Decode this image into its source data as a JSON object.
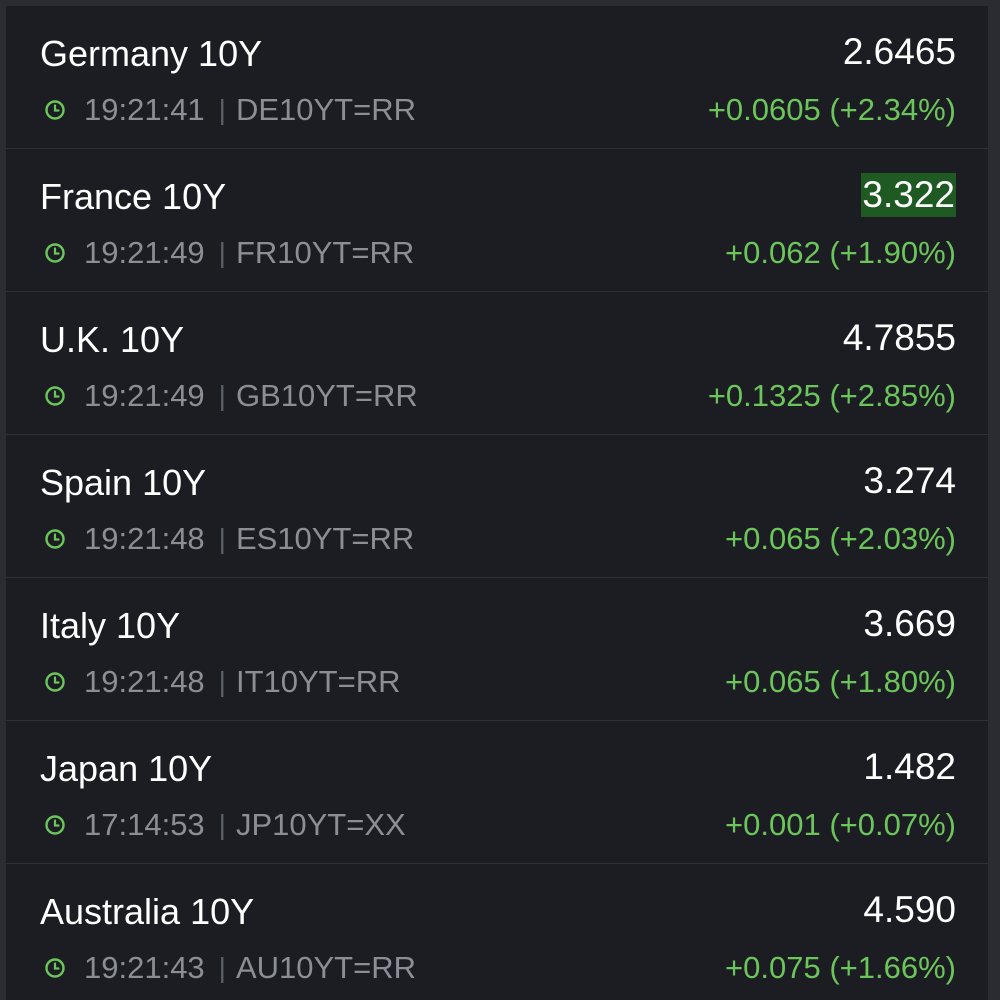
{
  "colors": {
    "background": "#1b1d22",
    "positive": "#6cc55a",
    "flash": "#1f5a22",
    "muted_text": "#8b8e95"
  },
  "icons": {
    "timestamp": "clock-icon"
  },
  "quotes": [
    {
      "name": "Germany 10Y",
      "price": "2.6465",
      "time": "19:21:41",
      "separator": "|",
      "ric": "DE10YT=RR",
      "change": "+0.0605 (+2.34%)",
      "flash": false
    },
    {
      "name": "France 10Y",
      "price": "3.322",
      "time": "19:21:49",
      "separator": "|",
      "ric": "FR10YT=RR",
      "change": "+0.062 (+1.90%)",
      "flash": true
    },
    {
      "name": "U.K. 10Y",
      "price": "4.7855",
      "time": "19:21:49",
      "separator": "|",
      "ric": "GB10YT=RR",
      "change": "+0.1325 (+2.85%)",
      "flash": false
    },
    {
      "name": "Spain 10Y",
      "price": "3.274",
      "time": "19:21:48",
      "separator": "|",
      "ric": "ES10YT=RR",
      "change": "+0.065 (+2.03%)",
      "flash": false
    },
    {
      "name": "Italy 10Y",
      "price": "3.669",
      "time": "19:21:48",
      "separator": "|",
      "ric": "IT10YT=RR",
      "change": "+0.065 (+1.80%)",
      "flash": false
    },
    {
      "name": "Japan 10Y",
      "price": "1.482",
      "time": "17:14:53",
      "separator": "|",
      "ric": "JP10YT=XX",
      "change": "+0.001 (+0.07%)",
      "flash": false
    },
    {
      "name": "Australia 10Y",
      "price": "4.590",
      "time": "19:21:43",
      "separator": "|",
      "ric": "AU10YT=RR",
      "change": "+0.075 (+1.66%)",
      "flash": false
    }
  ]
}
